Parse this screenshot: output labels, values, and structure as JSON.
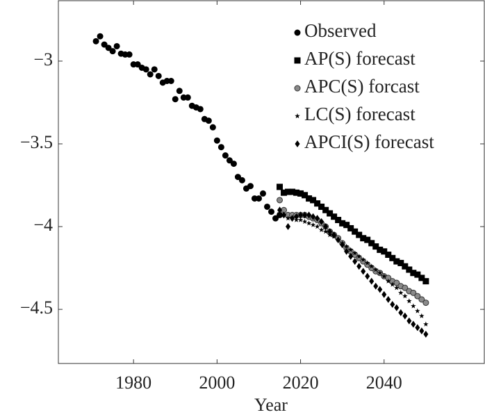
{
  "chart_data": {
    "type": "scatter",
    "xlabel": "Year",
    "xlim": [
      1962,
      2064
    ],
    "ylim": [
      -4.827,
      -2.635
    ],
    "xticks": [
      1980,
      2000,
      2020,
      2040
    ],
    "yticks": [
      {
        "value": -3,
        "label": "−3"
      },
      {
        "value": -3.5,
        "label": "−3.5"
      },
      {
        "value": -4,
        "label": "−4"
      },
      {
        "value": -4.5,
        "label": "−4.5"
      }
    ],
    "legend": "top-right",
    "series": [
      {
        "name": "Observed",
        "marker": "circle",
        "color": "#000000",
        "x": [
          1971,
          1972,
          1973,
          1974,
          1975,
          1976,
          1977,
          1978,
          1979,
          1980,
          1981,
          1982,
          1983,
          1984,
          1985,
          1986,
          1987,
          1988,
          1989,
          1990,
          1991,
          1992,
          1993,
          1994,
          1995,
          1996,
          1997,
          1998,
          1999,
          2000,
          2001,
          2002,
          2003,
          2004,
          2005,
          2006,
          2007,
          2008,
          2009,
          2010,
          2011,
          2012,
          2013,
          2014,
          2015
        ],
        "values": [
          -2.88,
          -2.85,
          -2.9,
          -2.92,
          -2.94,
          -2.91,
          -2.955,
          -2.96,
          -2.96,
          -3.02,
          -3.02,
          -3.04,
          -3.05,
          -3.08,
          -3.05,
          -3.09,
          -3.13,
          -3.12,
          -3.12,
          -3.23,
          -3.18,
          -3.22,
          -3.22,
          -3.27,
          -3.28,
          -3.29,
          -3.35,
          -3.36,
          -3.4,
          -3.48,
          -3.52,
          -3.57,
          -3.6,
          -3.62,
          -3.7,
          -3.72,
          -3.77,
          -3.755,
          -3.83,
          -3.83,
          -3.8,
          -3.88,
          -3.91,
          -3.95,
          -3.93
        ]
      },
      {
        "name": "AP(S) forecast",
        "marker": "square",
        "color": "#000000",
        "x": [
          2015,
          2016,
          2017,
          2018,
          2019,
          2020,
          2021,
          2022,
          2023,
          2024,
          2025,
          2026,
          2027,
          2028,
          2029,
          2030,
          2031,
          2032,
          2033,
          2034,
          2035,
          2036,
          2037,
          2038,
          2039,
          2040,
          2041,
          2042,
          2043,
          2044,
          2045,
          2046,
          2047,
          2048,
          2049,
          2050
        ],
        "values": [
          -3.76,
          -3.795,
          -3.79,
          -3.79,
          -3.795,
          -3.8,
          -3.81,
          -3.83,
          -3.84,
          -3.86,
          -3.88,
          -3.9,
          -3.92,
          -3.94,
          -3.96,
          -3.98,
          -3.99,
          -4.01,
          -4.03,
          -4.05,
          -4.07,
          -4.08,
          -4.1,
          -4.12,
          -4.14,
          -4.15,
          -4.17,
          -4.19,
          -4.21,
          -4.22,
          -4.24,
          -4.26,
          -4.28,
          -4.29,
          -4.31,
          -4.33
        ]
      },
      {
        "name": "APC(S) forcast",
        "marker": "shaded-circle",
        "color": "#8a8a8a",
        "x": [
          2015,
          2016,
          2017,
          2018,
          2019,
          2020,
          2021,
          2022,
          2023,
          2024,
          2025,
          2026,
          2027,
          2028,
          2029,
          2030,
          2031,
          2032,
          2033,
          2034,
          2035,
          2036,
          2037,
          2038,
          2039,
          2040,
          2041,
          2042,
          2043,
          2044,
          2045,
          2046,
          2047,
          2048,
          2049,
          2050
        ],
        "values": [
          -3.84,
          -3.9,
          -3.93,
          -3.93,
          -3.93,
          -3.93,
          -3.93,
          -3.94,
          -3.95,
          -3.96,
          -3.98,
          -4.0,
          -4.03,
          -4.05,
          -4.07,
          -4.1,
          -4.13,
          -4.15,
          -4.17,
          -4.19,
          -4.21,
          -4.23,
          -4.25,
          -4.27,
          -4.28,
          -4.3,
          -4.31,
          -4.33,
          -4.34,
          -4.36,
          -4.37,
          -4.39,
          -4.4,
          -4.42,
          -4.44,
          -4.46
        ]
      },
      {
        "name": "LC(S) forecast",
        "marker": "star",
        "color": "#000000",
        "x": [
          2015,
          2016,
          2017,
          2018,
          2019,
          2020,
          2021,
          2022,
          2023,
          2024,
          2025,
          2026,
          2027,
          2028,
          2029,
          2030,
          2031,
          2032,
          2033,
          2034,
          2035,
          2036,
          2037,
          2038,
          2039,
          2040,
          2041,
          2042,
          2043,
          2044,
          2045,
          2046,
          2047,
          2048,
          2049,
          2050
        ],
        "values": [
          -3.92,
          -3.93,
          -3.95,
          -3.95,
          -3.96,
          -3.96,
          -3.97,
          -3.98,
          -3.99,
          -4.0,
          -4.02,
          -4.03,
          -4.05,
          -4.06,
          -4.08,
          -4.1,
          -4.12,
          -4.14,
          -4.16,
          -4.18,
          -4.2,
          -4.22,
          -4.24,
          -4.26,
          -4.28,
          -4.3,
          -4.33,
          -4.35,
          -4.37,
          -4.4,
          -4.42,
          -4.45,
          -4.48,
          -4.51,
          -4.54,
          -4.59
        ]
      },
      {
        "name": "APCI(S) forecast",
        "marker": "diamond",
        "color": "#000000",
        "x": [
          2015,
          2016,
          2017,
          2018,
          2019,
          2020,
          2021,
          2022,
          2023,
          2024,
          2025,
          2026,
          2027,
          2028,
          2029,
          2030,
          2031,
          2032,
          2033,
          2034,
          2035,
          2036,
          2037,
          2038,
          2039,
          2040,
          2041,
          2042,
          2043,
          2044,
          2045,
          2046,
          2047,
          2048,
          2049,
          2050
        ],
        "values": [
          -3.9,
          -3.93,
          -4.0,
          -3.95,
          -3.94,
          -3.93,
          -3.93,
          -3.93,
          -3.94,
          -3.95,
          -3.97,
          -4.0,
          -4.03,
          -4.05,
          -4.08,
          -4.11,
          -4.15,
          -4.18,
          -4.21,
          -4.24,
          -4.27,
          -4.3,
          -4.33,
          -4.36,
          -4.38,
          -4.41,
          -4.44,
          -4.47,
          -4.49,
          -4.52,
          -4.54,
          -4.57,
          -4.59,
          -4.61,
          -4.63,
          -4.65
        ]
      }
    ]
  }
}
